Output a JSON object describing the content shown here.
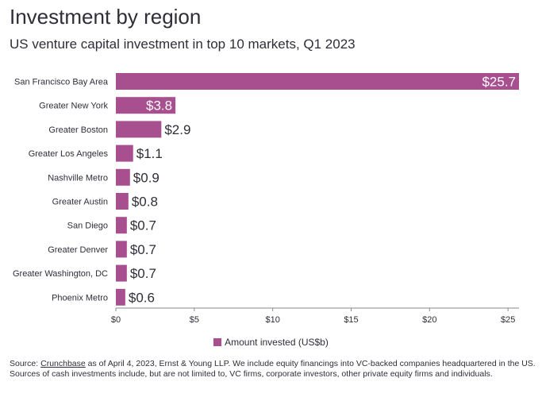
{
  "colors": {
    "bar": "#a8508f",
    "text": "#2e2e38",
    "axis": "#555555"
  },
  "header": {
    "title": "Investment by region",
    "subtitle": "US venture capital investment in top 10 markets, Q1 2023"
  },
  "chart_data": {
    "type": "bar",
    "orientation": "horizontal",
    "title": "Investment by region",
    "subtitle": "US venture capital investment in top 10 markets, Q1 2023",
    "categories": [
      "San Francisco Bay Area",
      "Greater New York",
      "Greater Boston",
      "Greater Los Angeles",
      "Nashville Metro",
      "Greater Austin",
      "San Diego",
      "Greater Denver",
      "Greater Washington, DC",
      "Phoenix Metro"
    ],
    "series": [
      {
        "name": "Amount invested (US$b)",
        "values": [
          25.7,
          3.8,
          2.9,
          1.1,
          0.9,
          0.8,
          0.7,
          0.7,
          0.7,
          0.6
        ]
      }
    ],
    "value_labels": [
      "$25.7",
      "$3.8",
      "$2.9",
      "$1.1",
      "$0.9",
      "$0.8",
      "$0.7",
      "$0.7",
      "$0.7",
      "$0.6"
    ],
    "x_ticks": [
      "$0",
      "$5",
      "$10",
      "$15",
      "$20",
      "$25"
    ],
    "x_tick_values": [
      0,
      5,
      10,
      15,
      20,
      25
    ],
    "xlim": [
      0,
      25.7
    ],
    "grid": false,
    "legend_position": "bottom"
  },
  "legend": {
    "label": "Amount invested (US$b)"
  },
  "footnote": {
    "prefix": "Source: ",
    "link": "Crunchbase",
    "text": " as of April 4, 2023, Ernst & Young LLP. We include equity financings into VC-backed companies headquartered in the US. Sources of cash investments include, but are not limited to, VC firms, corporate investors, other private equity firms and individuals."
  }
}
